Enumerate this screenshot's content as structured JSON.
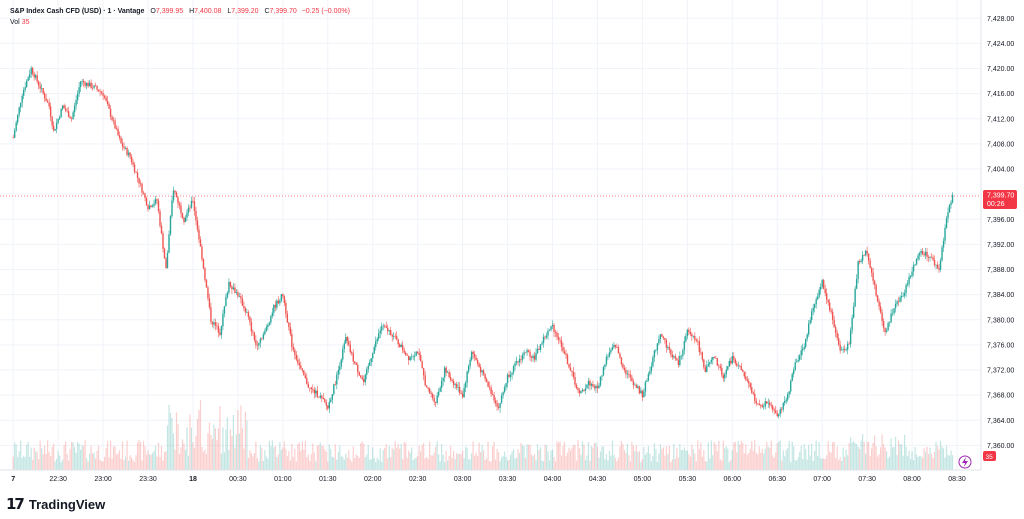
{
  "header": {
    "symbol": "S&P Index Cash CFD (USD) · 1 · Vantage",
    "open_label": "O",
    "open": "7,399.95",
    "high_label": "H",
    "high": "7,400.08",
    "low_label": "L",
    "low": "7,399.20",
    "close_label": "C",
    "close": "7,399.70",
    "change": "−0.25 (−0.00%)",
    "vol_label": "Vol",
    "vol": "35"
  },
  "colors": {
    "up": "#26a69a",
    "down": "#ef5350",
    "price_tag": "#f23645",
    "grid": "#f0f3fa"
  },
  "footer": {
    "logo": "17",
    "brand": "TradingView"
  },
  "price_tag": {
    "price": "7,399.70",
    "countdown": "00:26"
  },
  "vol_tag": "35",
  "chart_data": {
    "type": "candlestick",
    "title": "S&P Index Cash CFD (USD) · 1 · Vantage",
    "x_ticks": [
      "7",
      "22:30",
      "23:00",
      "23:30",
      "18",
      "00:30",
      "01:00",
      "01:30",
      "02:00",
      "02:30",
      "03:00",
      "03:30",
      "04:00",
      "04:30",
      "05:00",
      "05:30",
      "06:00",
      "06:30",
      "07:00",
      "07:30",
      "08:00",
      "08:30"
    ],
    "y_ticks": [
      "7,428.00",
      "7,424.00",
      "7,420.00",
      "7,416.00",
      "7,412.00",
      "7,408.00",
      "7,404.00",
      "7,400.00",
      "7,396.00",
      "7,392.00",
      "7,388.00",
      "7,384.00",
      "7,380.00",
      "7,376.00",
      "7,372.00",
      "7,368.00",
      "7,364.00",
      "7,360.00"
    ],
    "ylim": [
      7358,
      7429
    ],
    "xlim": [
      22.0,
      8.5
    ],
    "last_price": 7399.7,
    "grid": true,
    "price_path": [
      [
        22.0,
        7409
      ],
      [
        22.1,
        7416
      ],
      [
        22.2,
        7420
      ],
      [
        22.3,
        7417
      ],
      [
        22.4,
        7414
      ],
      [
        22.45,
        7410
      ],
      [
        22.55,
        7414
      ],
      [
        22.65,
        7412
      ],
      [
        22.75,
        7418
      ],
      [
        22.9,
        7417
      ],
      [
        23.0,
        7416
      ],
      [
        23.1,
        7412
      ],
      [
        23.2,
        7408
      ],
      [
        23.3,
        7406
      ],
      [
        23.4,
        7402
      ],
      [
        23.5,
        7398
      ],
      [
        23.6,
        7399
      ],
      [
        23.7,
        7388
      ],
      [
        23.78,
        7401
      ],
      [
        23.9,
        7396
      ],
      [
        24.0,
        7399
      ],
      [
        24.1,
        7390
      ],
      [
        24.2,
        7380
      ],
      [
        24.3,
        7378
      ],
      [
        24.4,
        7386
      ],
      [
        24.5,
        7384
      ],
      [
        24.6,
        7381
      ],
      [
        24.7,
        7376
      ],
      [
        24.8,
        7378
      ],
      [
        24.9,
        7382
      ],
      [
        25.0,
        7384
      ],
      [
        25.1,
        7376
      ],
      [
        25.2,
        7372
      ],
      [
        25.3,
        7369
      ],
      [
        25.4,
        7368
      ],
      [
        25.5,
        7366
      ],
      [
        25.6,
        7371
      ],
      [
        25.7,
        7377
      ],
      [
        25.8,
        7373
      ],
      [
        25.9,
        7370
      ],
      [
        26.0,
        7375
      ],
      [
        26.1,
        7379
      ],
      [
        26.2,
        7378
      ],
      [
        26.3,
        7376
      ],
      [
        26.4,
        7374
      ],
      [
        26.5,
        7375
      ],
      [
        26.6,
        7369
      ],
      [
        26.7,
        7367
      ],
      [
        26.8,
        7372
      ],
      [
        26.9,
        7370
      ],
      [
        27.0,
        7368
      ],
      [
        27.1,
        7375
      ],
      [
        27.2,
        7372
      ],
      [
        27.3,
        7369
      ],
      [
        27.4,
        7366
      ],
      [
        27.5,
        7371
      ],
      [
        27.6,
        7373
      ],
      [
        27.7,
        7375
      ],
      [
        27.8,
        7374
      ],
      [
        27.9,
        7377
      ],
      [
        28.0,
        7379
      ],
      [
        28.1,
        7376
      ],
      [
        28.2,
        7372
      ],
      [
        28.3,
        7368
      ],
      [
        28.4,
        7370
      ],
      [
        28.5,
        7369
      ],
      [
        28.6,
        7374
      ],
      [
        28.7,
        7376
      ],
      [
        28.8,
        7372
      ],
      [
        28.9,
        7370
      ],
      [
        29.0,
        7368
      ],
      [
        29.1,
        7373
      ],
      [
        29.2,
        7378
      ],
      [
        29.3,
        7375
      ],
      [
        29.4,
        7373
      ],
      [
        29.5,
        7378
      ],
      [
        29.6,
        7377
      ],
      [
        29.7,
        7372
      ],
      [
        29.8,
        7374
      ],
      [
        29.9,
        7371
      ],
      [
        30.0,
        7374
      ],
      [
        30.1,
        7372
      ],
      [
        30.2,
        7369
      ],
      [
        30.3,
        7366
      ],
      [
        30.4,
        7367
      ],
      [
        30.5,
        7365
      ],
      [
        30.6,
        7367
      ],
      [
        30.7,
        7373
      ],
      [
        30.8,
        7376
      ],
      [
        30.9,
        7382
      ],
      [
        31.0,
        7386
      ],
      [
        31.1,
        7381
      ],
      [
        31.2,
        7375
      ],
      [
        31.3,
        7376
      ],
      [
        31.4,
        7389
      ],
      [
        31.5,
        7391
      ],
      [
        31.6,
        7384
      ],
      [
        31.7,
        7378
      ],
      [
        31.8,
        7382
      ],
      [
        31.9,
        7384
      ],
      [
        32.0,
        7388
      ],
      [
        32.1,
        7391
      ],
      [
        32.2,
        7390
      ],
      [
        32.3,
        7388
      ],
      [
        32.38,
        7396
      ],
      [
        32.45,
        7399.7
      ]
    ],
    "volume_ylim": [
      0,
      60
    ]
  }
}
